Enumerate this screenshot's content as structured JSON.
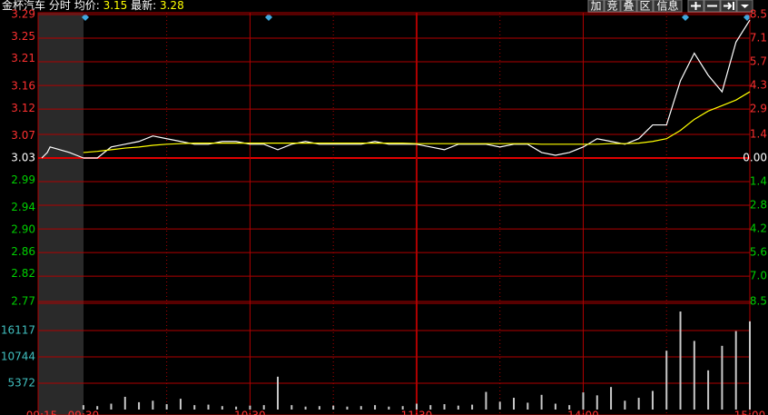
{
  "header": {
    "stock_name": "金杯汽车",
    "period": "分时",
    "avg_label": "均价:",
    "avg_value": 3.15,
    "last_label": "最新:",
    "last_value": 3.28
  },
  "toolbar": {
    "buttons": [
      "加",
      "竞",
      "叠",
      "区",
      "信息"
    ]
  },
  "chart_data": [
    {
      "type": "line",
      "x": [
        0,
        5,
        10,
        15,
        20,
        25,
        30,
        35,
        40,
        45,
        50,
        55,
        60,
        65,
        70,
        75,
        80,
        85,
        90,
        95,
        100,
        105,
        110,
        115,
        120,
        125,
        130,
        135,
        140,
        145,
        150,
        155,
        160,
        165,
        170,
        175,
        180,
        185,
        190,
        195,
        200,
        205,
        210,
        215,
        220,
        225,
        230,
        235,
        240
      ],
      "series": [
        {
          "color": "#ffffff",
          "values": [
            3.03,
            3.03,
            3.05,
            3.055,
            3.06,
            3.07,
            3.065,
            3.06,
            3.055,
            3.055,
            3.06,
            3.06,
            3.055,
            3.055,
            3.045,
            3.055,
            3.06,
            3.055,
            3.055,
            3.055,
            3.055,
            3.06,
            3.055,
            3.055,
            3.055,
            3.05,
            3.045,
            3.055,
            3.055,
            3.055,
            3.05,
            3.055,
            3.055,
            3.04,
            3.035,
            3.04,
            3.05,
            3.065,
            3.06,
            3.055,
            3.065,
            3.09,
            3.09,
            3.17,
            3.22,
            3.18,
            3.15,
            3.24,
            3.28
          ]
        },
        {
          "color": "#ffff00",
          "values": [
            3.04,
            3.042,
            3.045,
            3.048,
            3.05,
            3.053,
            3.055,
            3.056,
            3.057,
            3.057,
            3.057,
            3.057,
            3.057,
            3.057,
            3.057,
            3.057,
            3.057,
            3.057,
            3.057,
            3.057,
            3.057,
            3.057,
            3.057,
            3.057,
            3.056,
            3.056,
            3.056,
            3.056,
            3.056,
            3.056,
            3.056,
            3.056,
            3.056,
            3.055,
            3.055,
            3.055,
            3.055,
            3.055,
            3.056,
            3.056,
            3.057,
            3.06,
            3.065,
            3.08,
            3.1,
            3.115,
            3.125,
            3.135,
            3.15
          ]
        },
        {
          "color": "#ffffff",
          "x": [
            -15,
            -13,
            -12,
            -5,
            0
          ],
          "values": [
            3.03,
            3.04,
            3.05,
            3.04,
            3.03
          ]
        }
      ],
      "minor_xticks": [
        30,
        90,
        150,
        210
      ],
      "xlim": [
        -15,
        240
      ],
      "ylim": [
        2.77,
        3.29
      ],
      "yticks": [
        3.29,
        3.25,
        3.21,
        3.16,
        3.12,
        3.07,
        3.03,
        2.99,
        2.94,
        {
          "value": 2.9,
          "label": "2.90"
        },
        2.86,
        2.82,
        2.77
      ],
      "y2lim": [
        -8.5,
        8.5
      ],
      "y2ticks": [
        8.5,
        7.1,
        5.7,
        4.3,
        2.9,
        1.4,
        {
          "value": 0,
          "label": "0.00"
        },
        {
          "value": -1.4,
          "label": "1.4"
        },
        {
          "value": -2.8,
          "label": "2.8"
        },
        {
          "value": -4.2,
          "label": "4.2"
        },
        {
          "value": -5.6,
          "label": "5.6"
        },
        {
          "value": -7.0,
          "label": "7.0"
        },
        {
          "value": -8.5,
          "label": "8.5"
        }
      ]
    },
    {
      "type": "bar",
      "color": "#c8c8c8",
      "x": [
        0,
        5,
        10,
        15,
        20,
        25,
        30,
        35,
        40,
        45,
        50,
        55,
        60,
        65,
        70,
        75,
        80,
        85,
        90,
        95,
        100,
        105,
        110,
        115,
        120,
        125,
        130,
        135,
        140,
        145,
        150,
        155,
        160,
        165,
        170,
        175,
        180,
        185,
        190,
        195,
        200,
        205,
        210,
        215,
        220,
        225,
        230,
        235,
        240
      ],
      "values": [
        900,
        700,
        1200,
        2600,
        1500,
        1800,
        1100,
        2200,
        900,
        1000,
        700,
        600,
        800,
        900,
        6700,
        900,
        600,
        700,
        800,
        600,
        700,
        900,
        600,
        700,
        1200,
        900,
        1100,
        800,
        1000,
        3600,
        1600,
        2400,
        1400,
        3000,
        1200,
        900,
        3500,
        2900,
        4600,
        1800,
        2400,
        3800,
        12000,
        20000,
        14000,
        8000,
        13000,
        16000,
        18000
      ],
      "xlim": [
        -15,
        240
      ],
      "ylim": [
        0,
        21489
      ],
      "yticks": [
        5372,
        10744,
        16117
      ],
      "xticks": [
        {
          "value": -15,
          "label": "09:15"
        },
        {
          "value": 0,
          "label": "09:30"
        },
        {
          "value": 60,
          "label": "10:30"
        },
        {
          "value": 120,
          "label": "11:30"
        },
        {
          "value": 180,
          "label": "14:00"
        },
        {
          "value": 240,
          "label": "15:00"
        }
      ]
    }
  ]
}
